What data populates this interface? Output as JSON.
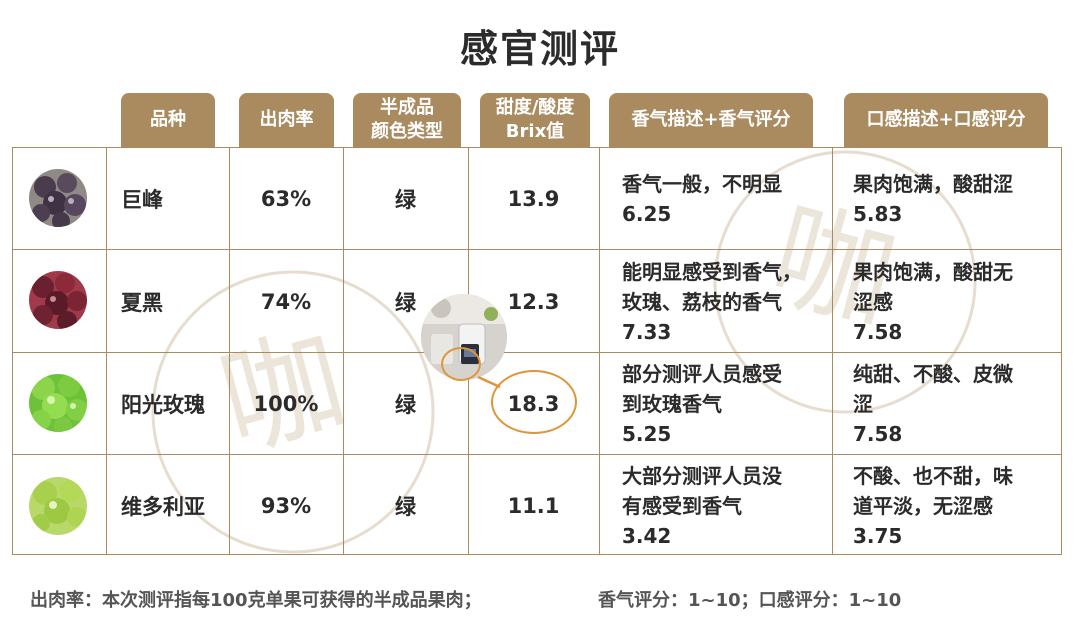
{
  "title": "感官测评",
  "headers": {
    "variety": "品种",
    "yield": "出肉率",
    "color_line1": "半成品",
    "color_line2": "颜色类型",
    "brix_line1": "甜度/酸度",
    "brix_line2": "Brix值",
    "aroma": "香气描述+香气评分",
    "taste": "口感描述+口感评分"
  },
  "rows": [
    {
      "name": "巨峰",
      "yield": "63%",
      "color": "绿",
      "brix": "13.9",
      "aroma_lines": [
        "香气一般，不明显",
        "6.25"
      ],
      "taste_lines": [
        "果肉饱满，酸甜涩",
        "5.83"
      ]
    },
    {
      "name": "夏黑",
      "yield": "74%",
      "color": "绿",
      "brix": "12.3",
      "aroma_lines": [
        "能明显感受到香气，",
        "玫瑰、荔枝的香气",
        "7.33"
      ],
      "taste_lines": [
        "果肉饱满，酸甜无",
        "涩感",
        "7.58"
      ]
    },
    {
      "name": "阳光玫瑰",
      "yield": "100%",
      "color": "绿",
      "brix": "18.3",
      "aroma_lines": [
        "部分测评人员感受",
        "到玫瑰香气",
        "5.25"
      ],
      "taste_lines": [
        "纯甜、不酸、皮微",
        "涩",
        "7.58"
      ]
    },
    {
      "name": "维多利亚",
      "yield": "93%",
      "color": "绿",
      "brix": "11.1",
      "aroma_lines": [
        "大部分测评人员没",
        "有感受到香气",
        "3.42"
      ],
      "taste_lines": [
        "不酸、也不甜，味",
        "道平淡，无涩感",
        "3.75"
      ]
    }
  ],
  "footer": {
    "left": "出肉率：本次测评指每100克单果可获得的半成品果肉；",
    "right": "香气评分：1~10；口感评分：1~10"
  },
  "colors": {
    "header_bg": "#a98b5f",
    "grid_line": "#a98b5f",
    "highlight": "#e0953a"
  }
}
